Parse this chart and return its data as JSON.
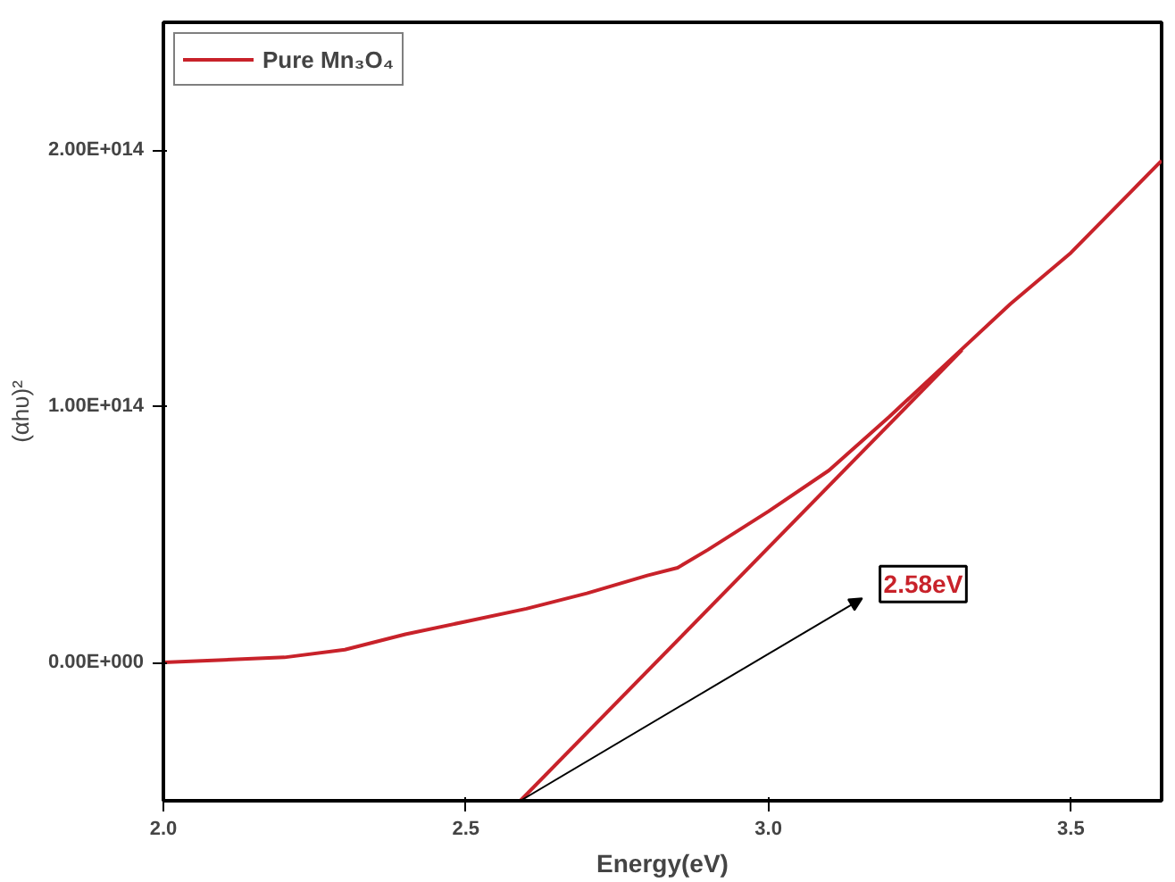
{
  "chart_data": {
    "type": "line",
    "xlabel": "Energy(eV)",
    "ylabel": "(αhυ)²",
    "xlim": [
      2.0,
      3.65
    ],
    "ylim": [
      -54000000000000.0,
      250000000000000.0
    ],
    "xticks": [
      {
        "value": 2.0,
        "label": "2.0"
      },
      {
        "value": 2.5,
        "label": "2.5"
      },
      {
        "value": 3.0,
        "label": "3.0"
      },
      {
        "value": 3.5,
        "label": "3.5"
      }
    ],
    "yticks": [
      {
        "value": 0,
        "label": "0.00E+000"
      },
      {
        "value": 100000000000000.0,
        "label": "1.00E+014"
      },
      {
        "value": 200000000000000.0,
        "label": "2.00E+014"
      }
    ],
    "grid": false,
    "legend": "top left",
    "line_style": "solid",
    "marker": "none",
    "series": [
      {
        "name": "Pure Mn₃O₄",
        "color": "#c8222a",
        "x": [
          2.0,
          2.1,
          2.2,
          2.3,
          2.4,
          2.5,
          2.6,
          2.7,
          2.8,
          2.85,
          2.9,
          3.0,
          3.1,
          3.2,
          3.3,
          3.4,
          3.5,
          3.6,
          3.65
        ],
        "values": [
          0,
          1000000000000.0,
          2000000000000.0,
          5000000000000.0,
          11000000000000.0,
          16000000000000.0,
          21000000000000.0,
          27000000000000.0,
          34000000000000.0,
          37000000000000.0,
          44000000000000.0,
          59000000000000.0,
          75000000000000.0,
          96000000000000.0,
          118000000000000.0,
          140000000000000.0,
          160000000000000.0,
          184000000000000.0,
          196000000000000.0
        ]
      },
      {
        "type": "line",
        "color": "#c8222a",
        "x": [
          2.59,
          3.32
        ],
        "values": [
          -54000000000000.0,
          122000000000000.0
        ]
      }
    ],
    "annotations": [
      {
        "text": "2.58eV",
        "x": 2.59,
        "y": -54000000000000.0
      }
    ]
  }
}
